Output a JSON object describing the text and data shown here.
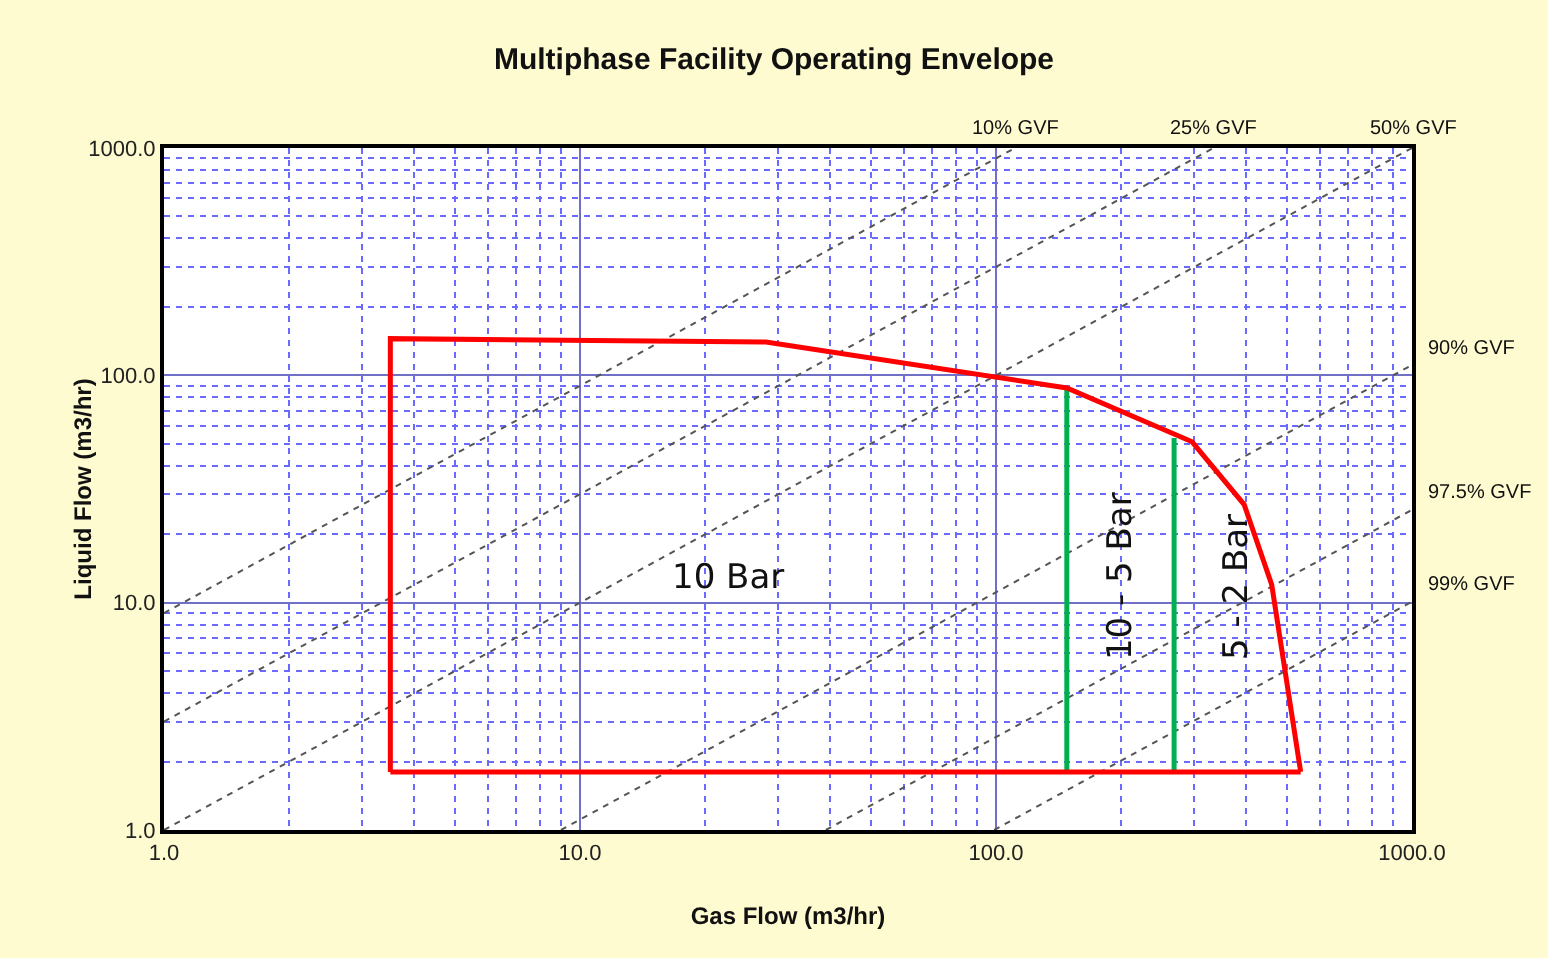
{
  "chart_data": {
    "type": "line",
    "title": "Multiphase Facility Operating Envelope",
    "xlabel": "Gas Flow (m3/hr)",
    "ylabel": "Liquid Flow (m3/hr)",
    "log": "xy",
    "grid": true,
    "legend": false,
    "marker": "none",
    "xlim": [
      1,
      1000
    ],
    "ylim": [
      1,
      1000
    ],
    "xticks": [
      {
        "value": 1,
        "label": "1.0"
      },
      {
        "value": 2,
        "label": null
      },
      {
        "value": 3,
        "label": null
      },
      {
        "value": 4,
        "label": null
      },
      {
        "value": 5,
        "label": null
      },
      {
        "value": 6,
        "label": null
      },
      {
        "value": 7,
        "label": null
      },
      {
        "value": 8,
        "label": null
      },
      {
        "value": 9,
        "label": null
      },
      {
        "value": 10,
        "label": "10.0"
      },
      {
        "value": 20,
        "label": null
      },
      {
        "value": 30,
        "label": null
      },
      {
        "value": 40,
        "label": null
      },
      {
        "value": 50,
        "label": null
      },
      {
        "value": 60,
        "label": null
      },
      {
        "value": 70,
        "label": null
      },
      {
        "value": 80,
        "label": null
      },
      {
        "value": 90,
        "label": null
      },
      {
        "value": 100,
        "label": "100.0"
      },
      {
        "value": 200,
        "label": null
      },
      {
        "value": 300,
        "label": null
      },
      {
        "value": 400,
        "label": null
      },
      {
        "value": 500,
        "label": null
      },
      {
        "value": 600,
        "label": null
      },
      {
        "value": 700,
        "label": null
      },
      {
        "value": 800,
        "label": null
      },
      {
        "value": 900,
        "label": null
      },
      {
        "value": 1000,
        "label": "1000.0"
      }
    ],
    "yticks": [
      {
        "value": 1,
        "label": "1.0"
      },
      {
        "value": 2,
        "label": null
      },
      {
        "value": 3,
        "label": null
      },
      {
        "value": 4,
        "label": null
      },
      {
        "value": 5,
        "label": null
      },
      {
        "value": 6,
        "label": null
      },
      {
        "value": 7,
        "label": null
      },
      {
        "value": 8,
        "label": null
      },
      {
        "value": 9,
        "label": null
      },
      {
        "value": 10,
        "label": "10.0"
      },
      {
        "value": 20,
        "label": null
      },
      {
        "value": 30,
        "label": null
      },
      {
        "value": 40,
        "label": null
      },
      {
        "value": 50,
        "label": null
      },
      {
        "value": 60,
        "label": null
      },
      {
        "value": 70,
        "label": null
      },
      {
        "value": 80,
        "label": null
      },
      {
        "value": 90,
        "label": null
      },
      {
        "value": 100,
        "label": "100.0"
      },
      {
        "value": 200,
        "label": null
      },
      {
        "value": 300,
        "label": null
      },
      {
        "value": 400,
        "label": null
      },
      {
        "value": 500,
        "label": null
      },
      {
        "value": 600,
        "label": null
      },
      {
        "value": 700,
        "label": null
      },
      {
        "value": 800,
        "label": null
      },
      {
        "value": 900,
        "label": null
      },
      {
        "value": 1000,
        "label": "1000.0"
      }
    ],
    "series": [
      {
        "name": "10% GVF",
        "color": "#555555",
        "line_style": "dotted",
        "x": [
          1,
          111.1
        ],
        "values": [
          9,
          1000
        ]
      },
      {
        "name": "25% GVF",
        "color": "#555555",
        "line_style": "dotted",
        "x": [
          1,
          333.3
        ],
        "values": [
          3,
          1000
        ]
      },
      {
        "name": "50% GVF",
        "color": "#555555",
        "line_style": "dotted",
        "x": [
          1,
          1000
        ],
        "values": [
          1,
          1000
        ]
      },
      {
        "name": "90% GVF",
        "color": "#555555",
        "line_style": "dotted",
        "x": [
          9,
          1000
        ],
        "values": [
          1,
          111.1
        ]
      },
      {
        "name": "97.5% GVF",
        "color": "#555555",
        "line_style": "dotted",
        "x": [
          39,
          1000
        ],
        "values": [
          1,
          25.6
        ]
      },
      {
        "name": "99% GVF",
        "color": "#555555",
        "line_style": "dotted",
        "x": [
          99,
          1000
        ],
        "values": [
          1,
          10.1
        ]
      },
      {
        "color": "#00b050",
        "line_style": "solid",
        "x": [
          148,
          148
        ],
        "values": [
          1.8,
          88
        ]
      },
      {
        "color": "#00b050",
        "line_style": "solid",
        "x": [
          268,
          268
        ],
        "values": [
          1.8,
          53
        ]
      },
      {
        "color": "#ff0000",
        "line_style": "solid",
        "x": [
          3.5,
          3.5,
          28,
          148,
          296,
          395,
          460,
          540
        ],
        "values": [
          1.8,
          145,
          140,
          88,
          51,
          27,
          12,
          1.8
        ]
      },
      {
        "color": "#ff0000",
        "line_style": "solid",
        "x": [
          3.5,
          540
        ],
        "values": [
          1.8,
          1.8
        ]
      }
    ],
    "annotations": [
      "10 Bar",
      "10 - 5 Bar",
      "5 - 2 Bar"
    ]
  }
}
